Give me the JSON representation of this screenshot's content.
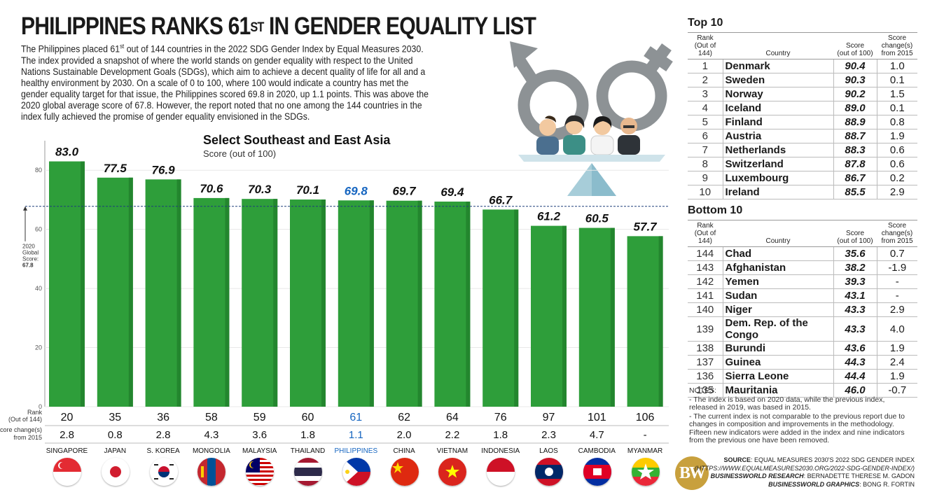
{
  "title": {
    "main": "PHILIPPINES RANKS 61",
    "sup": "ST",
    "rest": " IN GENDER EQUALITY LIST"
  },
  "intro": {
    "lines": [
      "The Philippines placed 61",
      "The index provided a snapshot of where the world stands on gender equality with respect to the United",
      "Nations Sustainable Development Goals (SDGs), which aim to achieve a decent quality of life for all and a",
      "healthy environment by 2030. On a scale of 0 to 100, where 100 would indicate a country has met the",
      "gender equality target for that issue, the Philippines scored 69.8 in 2020, up 1.1 points. This was above the",
      "2020 global average score of 67.8. However, the report noted that no one among the 144 countries in the",
      "index fully achieved the promise of gender equality envisioned in the SDGs."
    ],
    "line1_sup": "st",
    "line1_rest": " out of 144 countries in the 2022 SDG Gender Index by Equal Measures 2030."
  },
  "chart_data": {
    "type": "bar",
    "title": "Select Southeast and East Asia",
    "subtitle": "Score (out of 100)",
    "ylim": [
      0,
      90
    ],
    "yticks": [
      0,
      20,
      40,
      60,
      80
    ],
    "categories": [
      "SINGAPORE",
      "JAPAN",
      "S. KOREA",
      "MONGOLIA",
      "MALAYSIA",
      "THAILAND",
      "PHILIPPINES",
      "CHINA",
      "VIETNAM",
      "INDONESIA",
      "LAOS",
      "CAMBODIA",
      "MYANMAR"
    ],
    "values": [
      83.0,
      77.5,
      76.9,
      70.6,
      70.3,
      70.1,
      69.8,
      69.7,
      69.4,
      66.7,
      61.2,
      60.5,
      57.7
    ],
    "value_labels": [
      "83.0",
      "77.5",
      "76.9",
      "70.6",
      "70.3",
      "70.1",
      "69.8",
      "69.7",
      "69.4",
      "66.7",
      "61.2",
      "60.5",
      "57.7"
    ],
    "ranks": [
      "20",
      "35",
      "36",
      "58",
      "59",
      "60",
      "61",
      "62",
      "64",
      "76",
      "97",
      "101",
      "106"
    ],
    "score_changes": [
      "2.8",
      "0.8",
      "2.8",
      "4.3",
      "3.6",
      "1.8",
      "1.1",
      "2.0",
      "2.2",
      "1.8",
      "2.3",
      "4.7",
      "-"
    ],
    "highlight": "PHILIPPINES",
    "global_avg": 67.8,
    "global_avg_label": [
      "2020",
      "Global",
      "Score:",
      "67.8"
    ],
    "rank_row_label": [
      "Rank",
      "(Out of 144)"
    ],
    "change_row_label": [
      "Score change(s)",
      "from 2015"
    ],
    "colors": {
      "bar": "#2e9e3a",
      "bar_dark": "#23862e",
      "highlight_text": "#1565c0",
      "avg_line": "#1f3f7a"
    }
  },
  "flags": [
    "singapore-flag-icon",
    "japan-flag-icon",
    "south-korea-flag-icon",
    "mongolia-flag-icon",
    "malaysia-flag-icon",
    "thailand-flag-icon",
    "philippines-flag-icon",
    "china-flag-icon",
    "vietnam-flag-icon",
    "indonesia-flag-icon",
    "laos-flag-icon",
    "cambodia-flag-icon",
    "myanmar-flag-icon"
  ],
  "top10": {
    "title": "Top 10",
    "headers": {
      "rank": [
        "Rank",
        "(Out of 144)"
      ],
      "country": "Country",
      "score": [
        "Score",
        "(out of 100)"
      ],
      "change": [
        "Score change(s)",
        "from 2015"
      ]
    },
    "rows": [
      {
        "rank": "1",
        "country": "Denmark",
        "score": "90.4",
        "change": "1.0"
      },
      {
        "rank": "2",
        "country": "Sweden",
        "score": "90.3",
        "change": "0.1"
      },
      {
        "rank": "3",
        "country": "Norway",
        "score": "90.2",
        "change": "1.5"
      },
      {
        "rank": "4",
        "country": "Iceland",
        "score": "89.0",
        "change": "0.1"
      },
      {
        "rank": "5",
        "country": "Finland",
        "score": "88.9",
        "change": "0.8"
      },
      {
        "rank": "6",
        "country": "Austria",
        "score": "88.7",
        "change": "1.9"
      },
      {
        "rank": "7",
        "country": "Netherlands",
        "score": "88.3",
        "change": "0.6"
      },
      {
        "rank": "8",
        "country": "Switzerland",
        "score": "87.8",
        "change": "0.6"
      },
      {
        "rank": "9",
        "country": "Luxembourg",
        "score": "86.7",
        "change": "0.2"
      },
      {
        "rank": "10",
        "country": "Ireland",
        "score": "85.5",
        "change": "2.9"
      }
    ]
  },
  "bottom10": {
    "title": "Bottom 10",
    "headers": {
      "rank": [
        "Rank",
        "(Out of 144)"
      ],
      "country": "Country",
      "score": [
        "Score",
        "(out of 100)"
      ],
      "change": [
        "Score change(s)",
        "from 2015"
      ]
    },
    "rows": [
      {
        "rank": "144",
        "country": "Chad",
        "score": "35.6",
        "change": "0.7"
      },
      {
        "rank": "143",
        "country": "Afghanistan",
        "score": "38.2",
        "change": "-1.9"
      },
      {
        "rank": "142",
        "country": "Yemen",
        "score": "39.3",
        "change": "-"
      },
      {
        "rank": "141",
        "country": "Sudan",
        "score": "43.1",
        "change": "-"
      },
      {
        "rank": "140",
        "country": "Niger",
        "score": "43.3",
        "change": "2.9"
      },
      {
        "rank": "139",
        "country": "Dem. Rep. of the Congo",
        "score": "43.3",
        "change": "4.0"
      },
      {
        "rank": "138",
        "country": "Burundi",
        "score": "43.6",
        "change": "1.9"
      },
      {
        "rank": "137",
        "country": "Guinea",
        "score": "44.3",
        "change": "2.4"
      },
      {
        "rank": "136",
        "country": "Sierra Leone",
        "score": "44.4",
        "change": "1.9"
      },
      {
        "rank": "135",
        "country": "Mauritania",
        "score": "46.0",
        "change": "-0.7"
      }
    ]
  },
  "notes": {
    "heading": "NOTES:",
    "items": [
      "- The index is based on 2020 data, while the previous index, released in 2019, was based in 2015.",
      "- The current index is not comparable to the previous report due to changes in composition and improvements in the methodology. Fifteen new indicators were added in the index and nine indicators from the previous one have been removed."
    ]
  },
  "logo": {
    "text": "BW"
  },
  "credits": {
    "source_label": "SOURCE",
    "source_text": ": EQUAL MEASURES 2030'S 2022 SDG GENDER INDEX",
    "source_url": "(HTTPS://WWW.EQUALMEASURES2030.ORG/2022-SDG-GENDER-INDEX/)",
    "research_label": "BUSINESSWORLD RESEARCH",
    "research_text": ": BERNADETTE THERESE M. GADON",
    "graphics_label": "BUSINESSWORLD GRAPHICS",
    "graphics_text": ": BONG R. FORTIN"
  }
}
